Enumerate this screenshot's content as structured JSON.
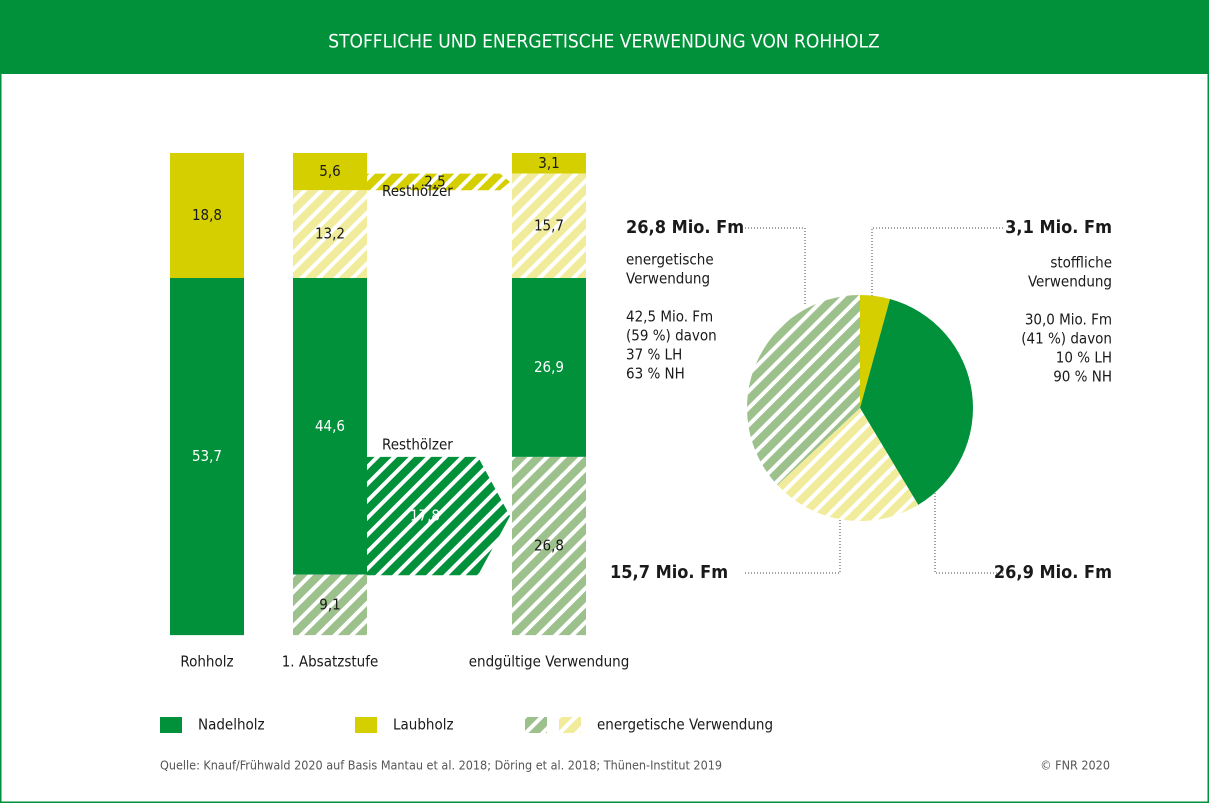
{
  "chart_data": {
    "type": "flow",
    "title": "STOFFLICHE UND ENERGETISCHE VERWENDUNG VON ROHHOLZ",
    "columns": [
      {
        "label": "Rohholz",
        "segments": [
          {
            "value": 18.8,
            "value_label": "18,8",
            "color": "#d5cf00",
            "hatched": false
          },
          {
            "value": 53.7,
            "value_label": "53,7",
            "color": "#00913a",
            "hatched": false
          }
        ]
      },
      {
        "label": "1. Absatzstufe",
        "segments": [
          {
            "value": 5.6,
            "value_label": "5,6",
            "color": "#d5cf00",
            "hatched": false
          },
          {
            "value": 13.2,
            "value_label": "13,2",
            "color": "#f1ec9c",
            "hatched": true
          },
          {
            "value": 44.6,
            "value_label": "44,6",
            "color": "#00913a",
            "hatched": false
          },
          {
            "value": 9.1,
            "value_label": "9,1",
            "color": "#9dc18c",
            "hatched": true
          }
        ]
      },
      {
        "label": "endgültige Verwendung",
        "segments": [
          {
            "value": 3.1,
            "value_label": "3,1",
            "color": "#d5cf00",
            "hatched": false
          },
          {
            "value": 15.7,
            "value_label": "15,7",
            "color": "#f1ec9c",
            "hatched": true
          },
          {
            "value": 26.9,
            "value_label": "26,9",
            "color": "#00913a",
            "hatched": false
          },
          {
            "value": 26.8,
            "value_label": "26,8",
            "color": "#9dc18c",
            "hatched": true
          }
        ]
      }
    ],
    "flows": [
      {
        "label": "Resthölzer",
        "value": 2.5,
        "value_label": "2,5",
        "color": "#d5cf00",
        "hatched": true
      },
      {
        "label": "Resthölzer",
        "value": 17.8,
        "value_label": "17,8",
        "color": "#00913a",
        "hatched": true
      }
    ],
    "pie": {
      "slices": [
        {
          "value": 3.1,
          "value_label": "3,1 Mio. Fm",
          "color": "#d5cf00",
          "hatched": false
        },
        {
          "value": 26.9,
          "value_label": "26,9 Mio. Fm",
          "color": "#00913a",
          "hatched": false
        },
        {
          "value": 15.7,
          "value_label": "15,7 Mio. Fm",
          "color": "#f1ec9c",
          "hatched": true
        },
        {
          "value": 26.8,
          "value_label": "26,8 Mio. Fm",
          "color": "#9dc18c",
          "hatched": true
        }
      ],
      "left_note": [
        "energetische",
        "Verwendung",
        "",
        "42,5 Mio. Fm",
        "(59 %) davon",
        "37 % LH",
        "63 % NH"
      ],
      "right_note": [
        "stoffliche",
        "Verwendung",
        "",
        "30,0 Mio. Fm",
        "(41 %) davon",
        "10 % LH",
        "90 % NH"
      ]
    },
    "legend": [
      "Nadelholz",
      "Laubholz",
      "energetische Verwendung"
    ],
    "source": "Quelle: Knauf/Frühwald 2020 auf Basis Mantau et al. 2018; Döring et al. 2018; Thünen-Institut 2019",
    "copyright": "© FNR 2020"
  }
}
